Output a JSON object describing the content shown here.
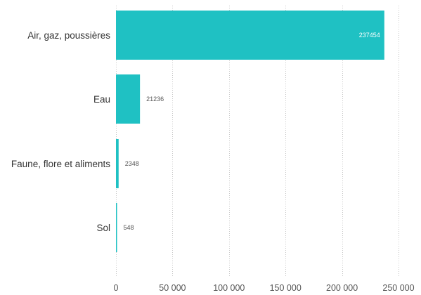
{
  "chart_data": {
    "type": "bar",
    "orientation": "horizontal",
    "title": "",
    "xlabel": "",
    "ylabel": "",
    "categories": [
      "Air, gaz, poussières",
      "Eau",
      "Faune, flore et aliments",
      "Sol"
    ],
    "values": [
      237454,
      21236,
      2348,
      548
    ],
    "data_labels": [
      "237454",
      "21236",
      "2348",
      "548"
    ],
    "xlim": [
      0,
      250000
    ],
    "x_ticks": [
      0,
      50000,
      100000,
      150000,
      200000,
      250000
    ],
    "x_tick_labels": [
      "0",
      "50 000",
      "100 000",
      "150 000",
      "200 000",
      "250 000"
    ],
    "grid": true,
    "legend": "none",
    "colors": {
      "bar": "#1fc1c3",
      "label_inside": "#ffffff",
      "label_outside": "#555555",
      "grid": "#c8c8c8"
    }
  }
}
